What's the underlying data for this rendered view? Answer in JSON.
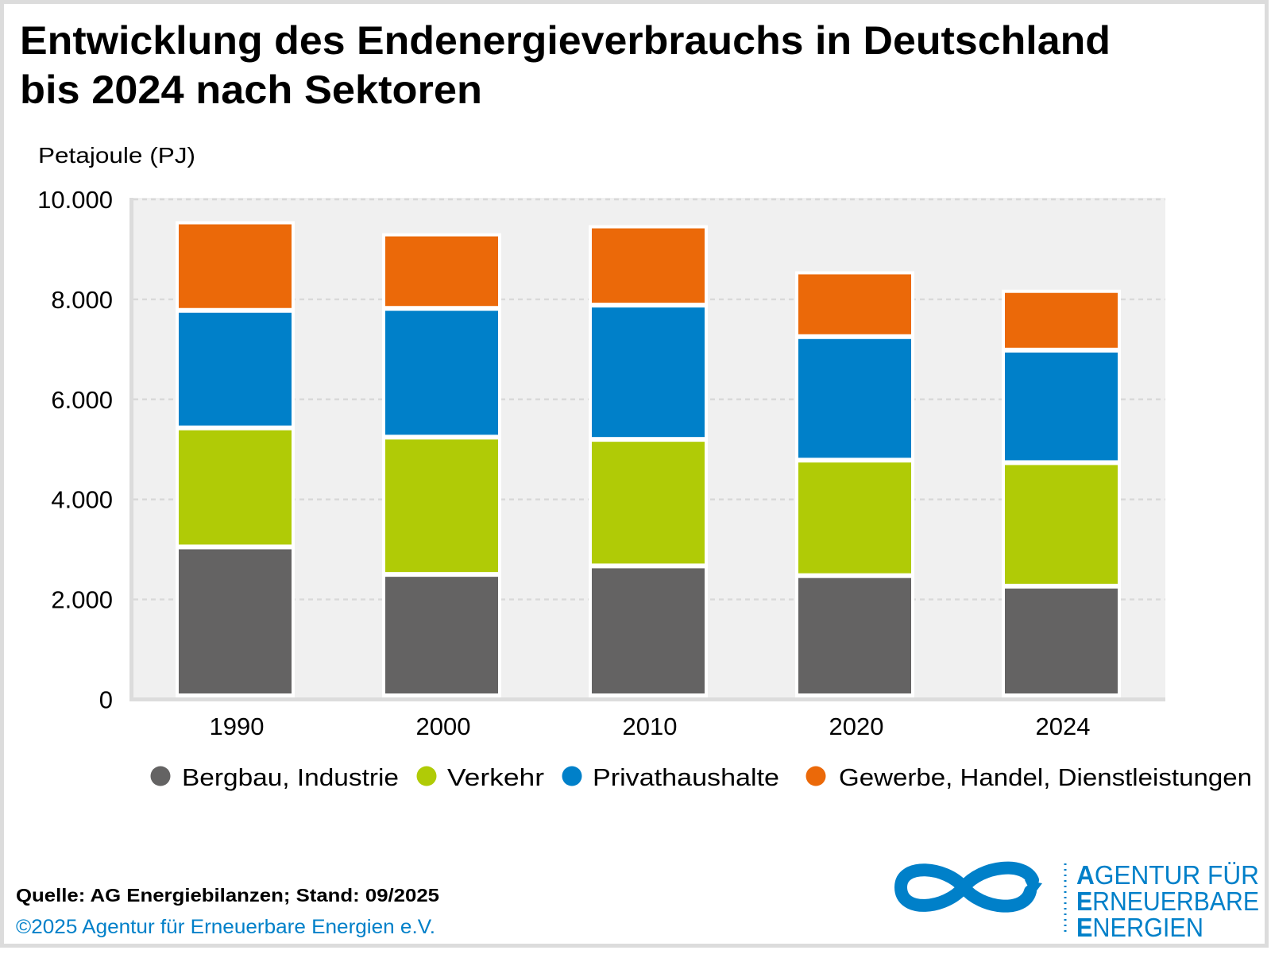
{
  "title": {
    "line1": "Entwicklung des Endenergieverbrauchs in Deutschland",
    "line2": "bis 2024 nach Sektoren"
  },
  "chart_data": {
    "type": "bar",
    "stacked": true,
    "title": "Entwicklung des Endenergieverbrauchs in Deutschland bis 2024 nach Sektoren",
    "xlabel": "",
    "ylabel": "Petajoule (PJ)",
    "ylim": [
      0,
      10000
    ],
    "yticks": [
      0,
      2000,
      4000,
      6000,
      8000,
      10000
    ],
    "ytick_labels": [
      "0",
      "2.000",
      "4.000",
      "6.000",
      "8.000",
      "10.000"
    ],
    "grid": true,
    "legend_position": "bottom",
    "categories": [
      "1990",
      "2000",
      "2010",
      "2020",
      "2024"
    ],
    "series": [
      {
        "name": "Bergbau, Industrie",
        "color": "#646363",
        "values": [
          3050,
          2500,
          2670,
          2475,
          2265
        ]
      },
      {
        "name": "Verkehr",
        "color": "#b0cb06",
        "values": [
          2380,
          2745,
          2530,
          2310,
          2470
        ]
      },
      {
        "name": "Privathaushalte",
        "color": "#0080c9",
        "values": [
          2350,
          2575,
          2685,
          2470,
          2250
        ]
      },
      {
        "name": "Gewerbe, Handel, Dienstleistungen",
        "color": "#eb6909",
        "values": [
          1720,
          1440,
          1535,
          1245,
          1145
        ]
      }
    ]
  },
  "footer": {
    "source": "Quelle: AG Energiebilanzen; Stand: 09/2025",
    "copyright": "©2025 Agentur für Erneuerbare Energien e.V."
  },
  "logo": {
    "line1_initial": "A",
    "line1_rest": "GENTUR FÜR",
    "line2_initial": "E",
    "line2_rest": "RNEUERBARE",
    "line3_initial": "E",
    "line3_rest": "NERGIEN",
    "color": "#0080c9"
  },
  "colors": {
    "plot_background": "#f0f0f0",
    "gridline": "#d9d9d9",
    "axis": "#dcdcdc",
    "frame": "#dcdcdc"
  }
}
